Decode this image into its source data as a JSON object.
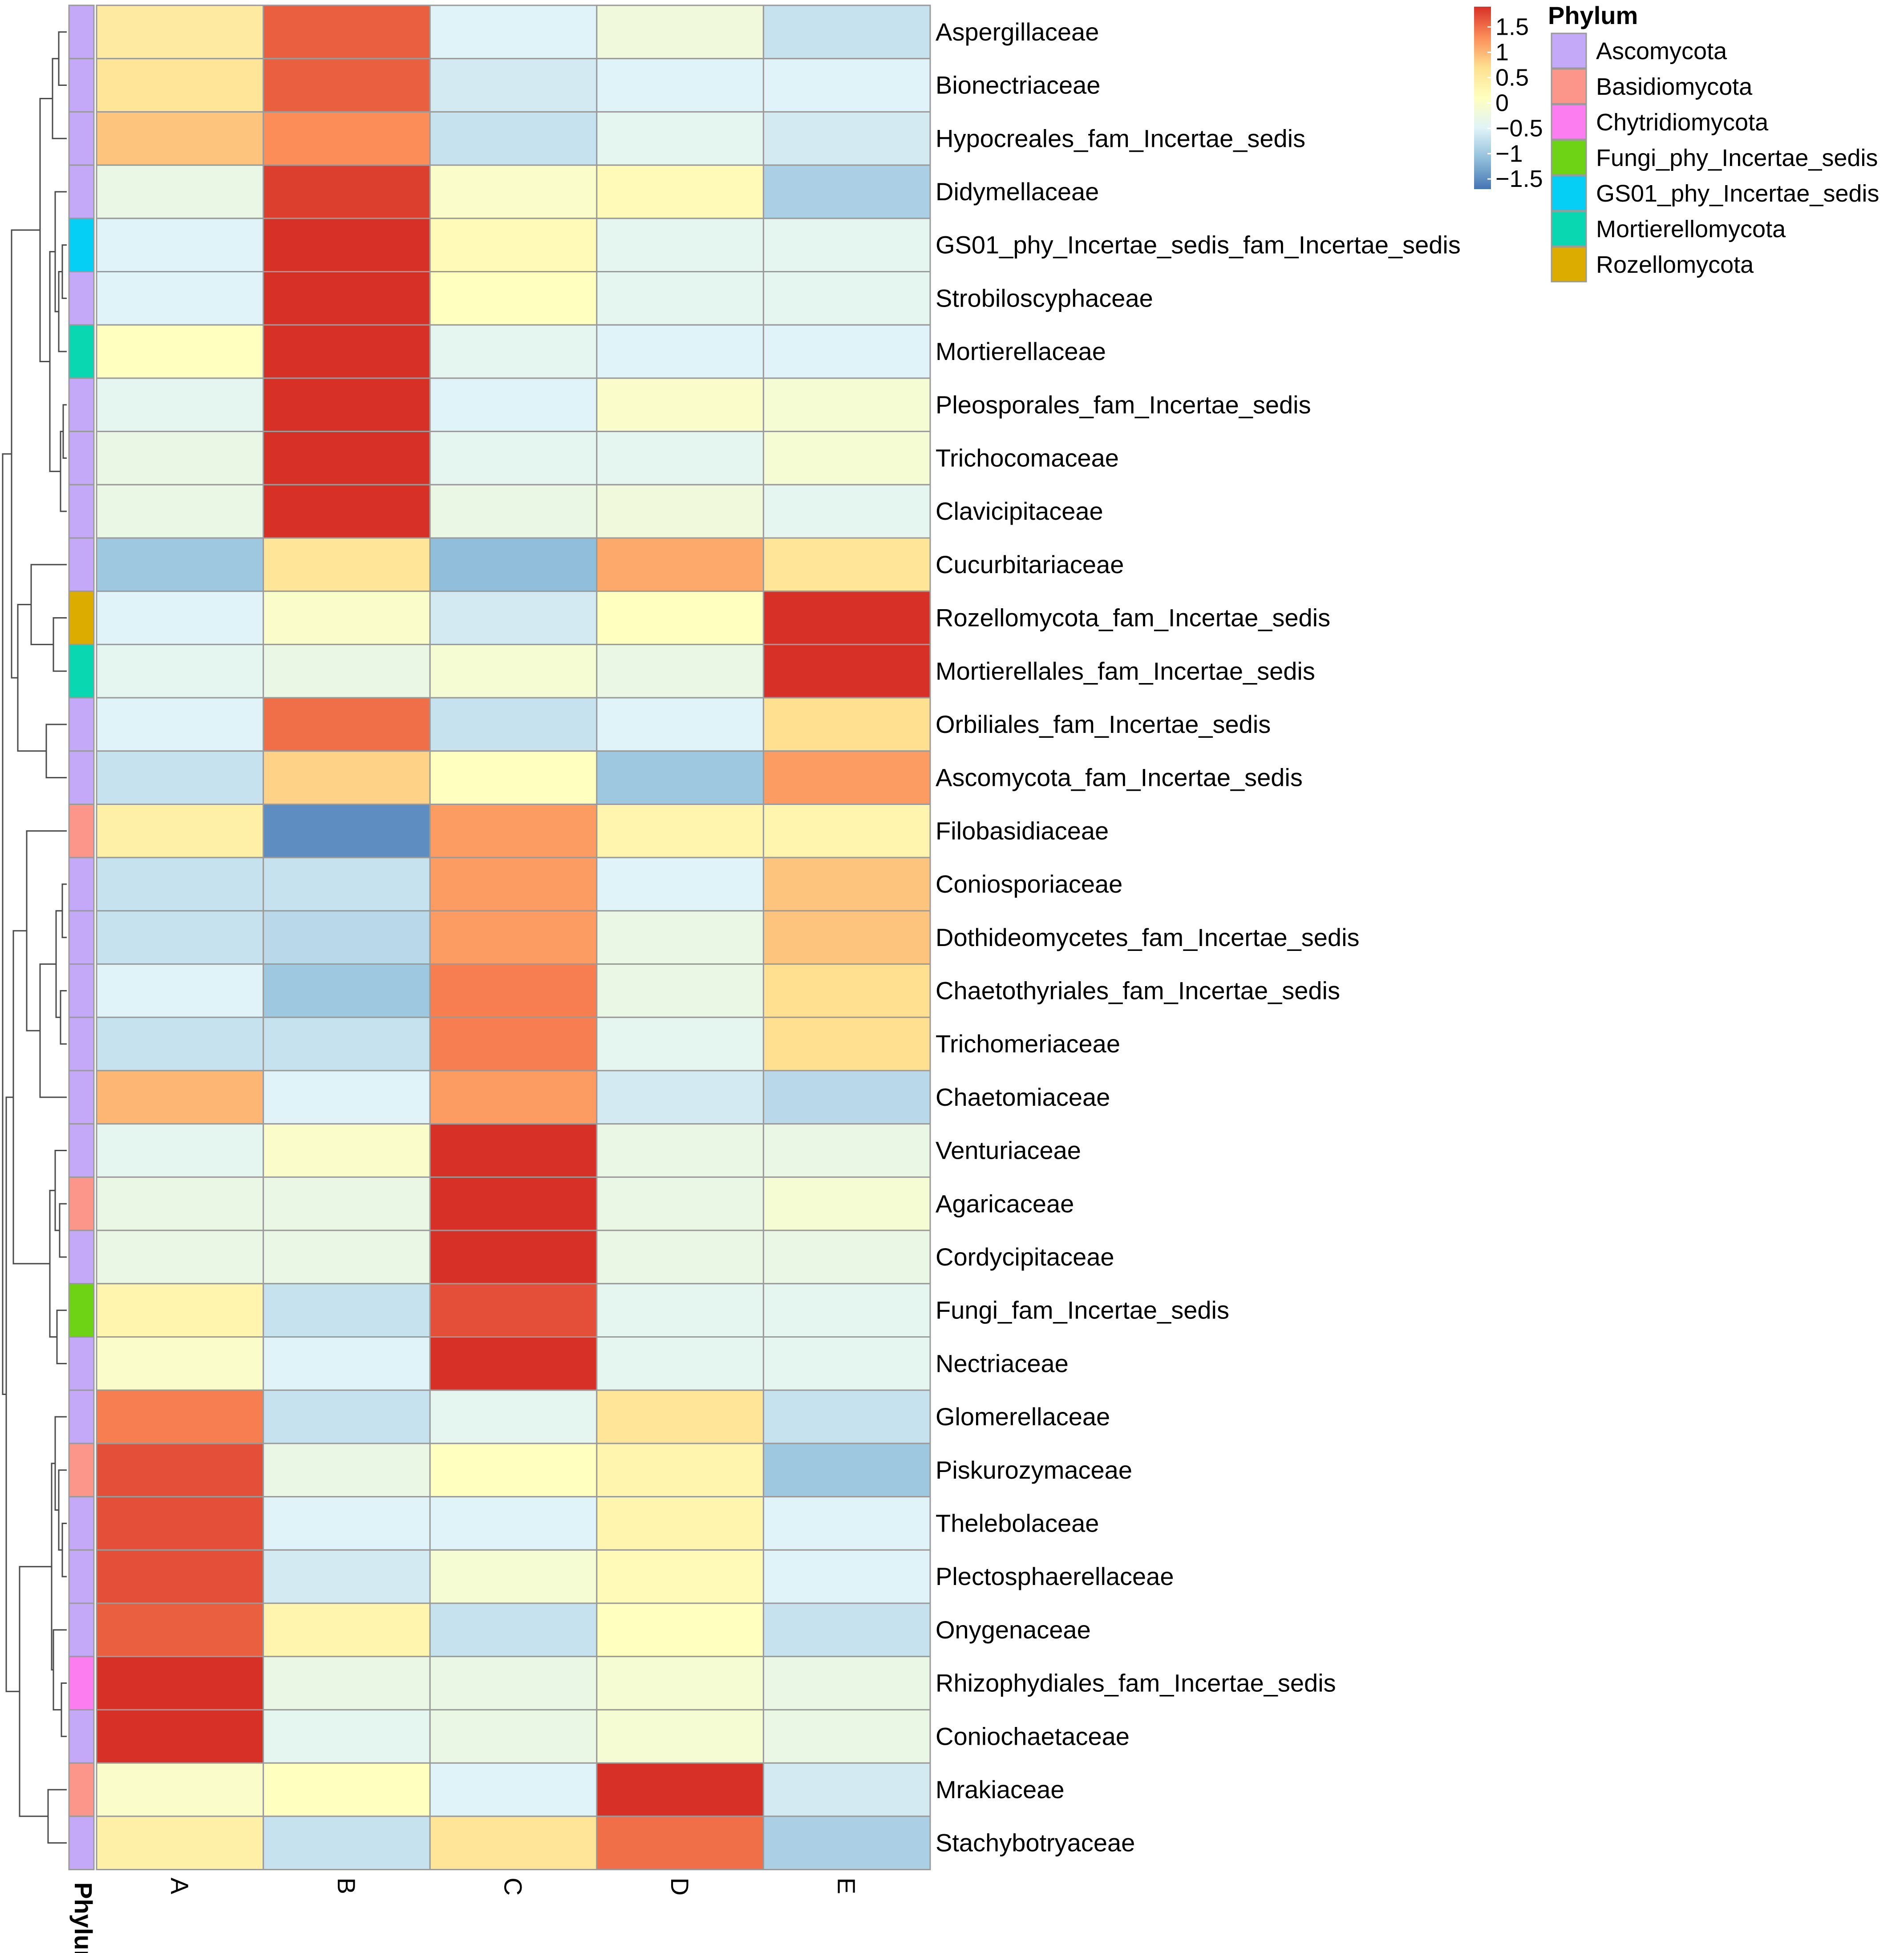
{
  "chart_data": {
    "type": "heatmap",
    "columns": [
      "A",
      "B",
      "C",
      "D",
      "E"
    ],
    "rows": [
      {
        "label": "Aspergillaceae",
        "phylum": "Ascomycota",
        "values": [
          0.5,
          1.6,
          -0.5,
          -0.2,
          -0.7
        ]
      },
      {
        "label": "Bionectriaceae",
        "phylum": "Ascomycota",
        "values": [
          0.6,
          1.6,
          -0.6,
          -0.5,
          -0.5
        ]
      },
      {
        "label": "Hypocreales_fam_Incertae_sedis",
        "phylum": "Ascomycota",
        "values": [
          0.9,
          1.3,
          -0.7,
          -0.4,
          -0.6
        ]
      },
      {
        "label": "Didymellaceae",
        "phylum": "Ascomycota",
        "values": [
          -0.3,
          1.8,
          0.0,
          0.2,
          -0.9
        ]
      },
      {
        "label": "GS01_phy_Incertae_sedis_fam_Incertae_sedis",
        "phylum": "GS01_phy_Incertae_sedis",
        "values": [
          -0.5,
          1.9,
          0.2,
          -0.4,
          -0.4
        ]
      },
      {
        "label": "Strobiloscyphaceae",
        "phylum": "Ascomycota",
        "values": [
          -0.5,
          1.9,
          0.1,
          -0.4,
          -0.4
        ]
      },
      {
        "label": "Mortierellaceae",
        "phylum": "Mortierellomycota",
        "values": [
          0.1,
          1.9,
          -0.4,
          -0.5,
          -0.5
        ]
      },
      {
        "label": "Pleosporales_fam_Incertae_sedis",
        "phylum": "Ascomycota",
        "values": [
          -0.4,
          1.9,
          -0.5,
          0.0,
          -0.1
        ]
      },
      {
        "label": "Trichocomaceae",
        "phylum": "Ascomycota",
        "values": [
          -0.3,
          1.9,
          -0.4,
          -0.4,
          -0.1
        ]
      },
      {
        "label": "Clavicipitaceae",
        "phylum": "Ascomycota",
        "values": [
          -0.3,
          1.9,
          -0.3,
          -0.2,
          -0.4
        ]
      },
      {
        "label": "Cucurbitariaceae",
        "phylum": "Ascomycota",
        "values": [
          -1.0,
          0.6,
          -1.1,
          1.1,
          0.6
        ]
      },
      {
        "label": "Rozellomycota_fam_Incertae_sedis",
        "phylum": "Rozellomycota",
        "values": [
          -0.5,
          0.0,
          -0.6,
          0.1,
          1.9
        ]
      },
      {
        "label": "Mortierellales_fam_Incertae_sedis",
        "phylum": "Mortierellomycota",
        "values": [
          -0.4,
          -0.3,
          -0.1,
          -0.3,
          1.9
        ]
      },
      {
        "label": "Orbiliales_fam_Incertae_sedis",
        "phylum": "Ascomycota",
        "values": [
          -0.5,
          1.5,
          -0.7,
          -0.5,
          0.7
        ]
      },
      {
        "label": "Ascomycota_fam_Incertae_sedis",
        "phylum": "Ascomycota",
        "values": [
          -0.7,
          0.8,
          0.1,
          -1.0,
          1.2
        ]
      },
      {
        "label": "Filobasidiaceae",
        "phylum": "Basidiomycota",
        "values": [
          0.4,
          -1.5,
          1.2,
          0.3,
          0.3
        ]
      },
      {
        "label": "Coniosporiaceae",
        "phylum": "Ascomycota",
        "values": [
          -0.7,
          -0.7,
          1.2,
          -0.5,
          0.9
        ]
      },
      {
        "label": "Dothideomycetes_fam_Incertae_sedis",
        "phylum": "Ascomycota",
        "values": [
          -0.7,
          -0.8,
          1.2,
          -0.3,
          0.9
        ]
      },
      {
        "label": "Chaetothyriales_fam_Incertae_sedis",
        "phylum": "Ascomycota",
        "values": [
          -0.5,
          -1.0,
          1.4,
          -0.3,
          0.7
        ]
      },
      {
        "label": "Trichomeriaceae",
        "phylum": "Ascomycota",
        "values": [
          -0.7,
          -0.7,
          1.4,
          -0.4,
          0.7
        ]
      },
      {
        "label": "Chaetomiaceae",
        "phylum": "Ascomycota",
        "values": [
          1.0,
          -0.5,
          1.2,
          -0.6,
          -0.8
        ]
      },
      {
        "label": "Venturiaceae",
        "phylum": "Ascomycota",
        "values": [
          -0.4,
          0.0,
          1.9,
          -0.3,
          -0.3
        ]
      },
      {
        "label": "Agaricaceae",
        "phylum": "Basidiomycota",
        "values": [
          -0.3,
          -0.3,
          1.9,
          -0.3,
          -0.1
        ]
      },
      {
        "label": "Cordycipitaceae",
        "phylum": "Ascomycota",
        "values": [
          -0.3,
          -0.3,
          1.9,
          -0.3,
          -0.3
        ]
      },
      {
        "label": "Fungi_fam_Incertae_sedis",
        "phylum": "Fungi_phy_Incertae_sedis",
        "values": [
          0.3,
          -0.7,
          1.7,
          -0.4,
          -0.4
        ]
      },
      {
        "label": "Nectriaceae",
        "phylum": "Ascomycota",
        "values": [
          0.0,
          -0.5,
          1.9,
          -0.4,
          -0.4
        ]
      },
      {
        "label": "Glomerellaceae",
        "phylum": "Ascomycota",
        "values": [
          1.4,
          -0.7,
          -0.4,
          0.6,
          -0.7
        ]
      },
      {
        "label": "Piskurozymaceae",
        "phylum": "Basidiomycota",
        "values": [
          1.7,
          -0.3,
          0.1,
          0.3,
          -1.0
        ]
      },
      {
        "label": "Thelebolaceae",
        "phylum": "Ascomycota",
        "values": [
          1.7,
          -0.5,
          -0.5,
          0.3,
          -0.5
        ]
      },
      {
        "label": "Plectosphaerellaceae",
        "phylum": "Ascomycota",
        "values": [
          1.7,
          -0.6,
          -0.1,
          0.2,
          -0.5
        ]
      },
      {
        "label": "Onygenaceae",
        "phylum": "Ascomycota",
        "values": [
          1.6,
          0.3,
          -0.7,
          0.1,
          -0.7
        ]
      },
      {
        "label": "Rhizophydiales_fam_Incertae_sedis",
        "phylum": "Chytridiomycota",
        "values": [
          1.9,
          -0.3,
          -0.3,
          -0.1,
          -0.3
        ]
      },
      {
        "label": "Coniochaetaceae",
        "phylum": "Ascomycota",
        "values": [
          1.9,
          -0.4,
          -0.3,
          -0.1,
          -0.3
        ]
      },
      {
        "label": "Mrakiaceae",
        "phylum": "Basidiomycota",
        "values": [
          0.0,
          0.1,
          -0.5,
          1.9,
          -0.6
        ]
      },
      {
        "label": "Stachybotryaceae",
        "phylum": "Ascomycota",
        "values": [
          0.4,
          -0.7,
          0.6,
          1.5,
          -0.9
        ]
      }
    ],
    "annotation_label": "Phylum",
    "scale_ticks": [
      "1.5",
      "1",
      "0.5",
      "0",
      "−0.5",
      "−1",
      "−1.5"
    ],
    "scale_range": [
      -1.7,
      1.9
    ],
    "color_scale": [
      "#4575B4",
      "#91BFDB",
      "#E0F3F8",
      "#FFFFBF",
      "#FEE090",
      "#FC8D59",
      "#D73027"
    ],
    "legend": {
      "title": "Phylum",
      "position": "top-right",
      "entries": [
        {
          "name": "Ascomycota",
          "color": "#C3A9F7"
        },
        {
          "name": "Basidiomycota",
          "color": "#FC958A"
        },
        {
          "name": "Chytridiomycota",
          "color": "#FC7DF0"
        },
        {
          "name": "Fungi_phy_Incertae_sedis",
          "color": "#6ED314"
        },
        {
          "name": "GS01_phy_Incertae_sedis",
          "color": "#06CFF6"
        },
        {
          "name": "Mortierellomycota",
          "color": "#09D7B1"
        },
        {
          "name": "Rozellomycota",
          "color": "#DCAD00"
        }
      ]
    },
    "dendrogram": "row-clustering-on-left",
    "grid": true
  }
}
